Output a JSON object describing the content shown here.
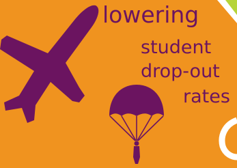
{
  "headline": {
    "lines": [
      "lowering",
      "student",
      "drop-out",
      "rates"
    ]
  }
}
